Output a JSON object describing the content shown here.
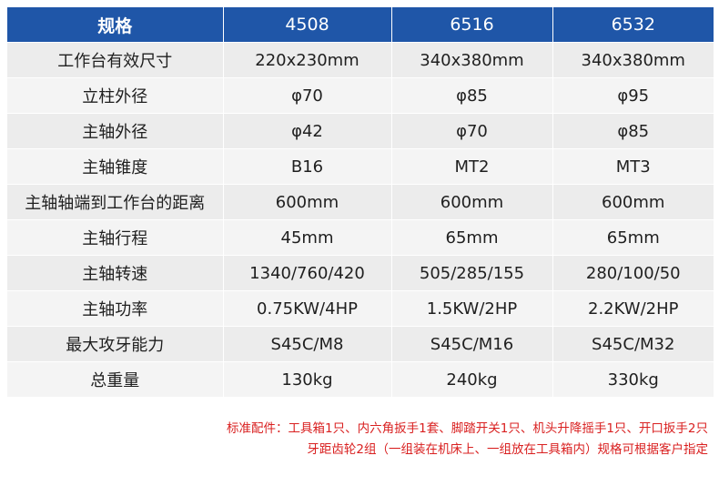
{
  "table": {
    "headers": [
      "规格",
      "4508",
      "6516",
      "6532"
    ],
    "rows": [
      [
        "工作台有效尺寸",
        "220x230mm",
        "340x380mm",
        "340x380mm"
      ],
      [
        "立柱外径",
        "φ70",
        "φ85",
        "φ95"
      ],
      [
        "主轴外径",
        "φ42",
        "φ70",
        "φ85"
      ],
      [
        "主轴锥度",
        "B16",
        "MT2",
        "MT3"
      ],
      [
        "主轴轴端到工作台的距离",
        "600mm",
        "600mm",
        "600mm"
      ],
      [
        "主轴行程",
        "45mm",
        "65mm",
        "65mm"
      ],
      [
        "主轴转速",
        "1340/760/420",
        "505/285/155",
        "280/100/50"
      ],
      [
        "主轴功率",
        "0.75KW/4HP",
        "1.5KW/2HP",
        "2.2KW/2HP"
      ],
      [
        "最大攻牙能力",
        "S45C/M8",
        "S45C/M16",
        "S45C/M32"
      ],
      [
        "总重量",
        "130kg",
        "240kg",
        "330kg"
      ]
    ]
  },
  "notes": {
    "line1": "标准配件：工具箱1只、内六角扳手1套、脚踏开关1只、机头升降摇手1只、开口扳手2只",
    "line2": "牙距齿轮2组（一组装在机床上、一组放在工具箱内）规格可根据客户指定"
  },
  "colors": {
    "header_bg": "#1f56a8",
    "row_bg": "#ececec",
    "note_text": "#d92020"
  }
}
